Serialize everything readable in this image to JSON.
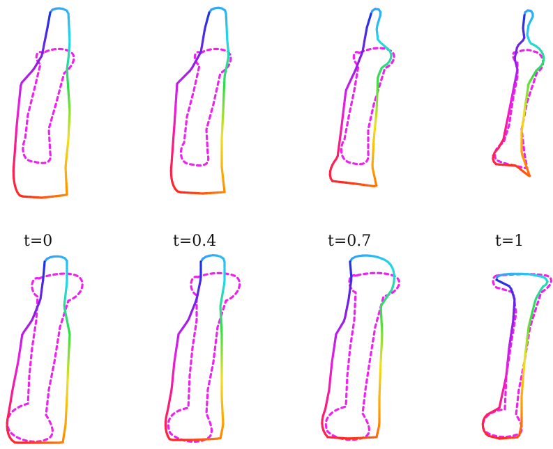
{
  "time_labels": [
    "t=0",
    "t=0.4",
    "t=0.7",
    "t=1"
  ],
  "colors": {
    "target_contour": "#ee22ee",
    "gradient": [
      "#3399ff",
      "#22d8e8",
      "#33dd44",
      "#f0e020",
      "#ff9900",
      "#ff2a1a",
      "#ff1a77",
      "#e61ee6",
      "#8a1ee6",
      "#1a33e6"
    ]
  }
}
